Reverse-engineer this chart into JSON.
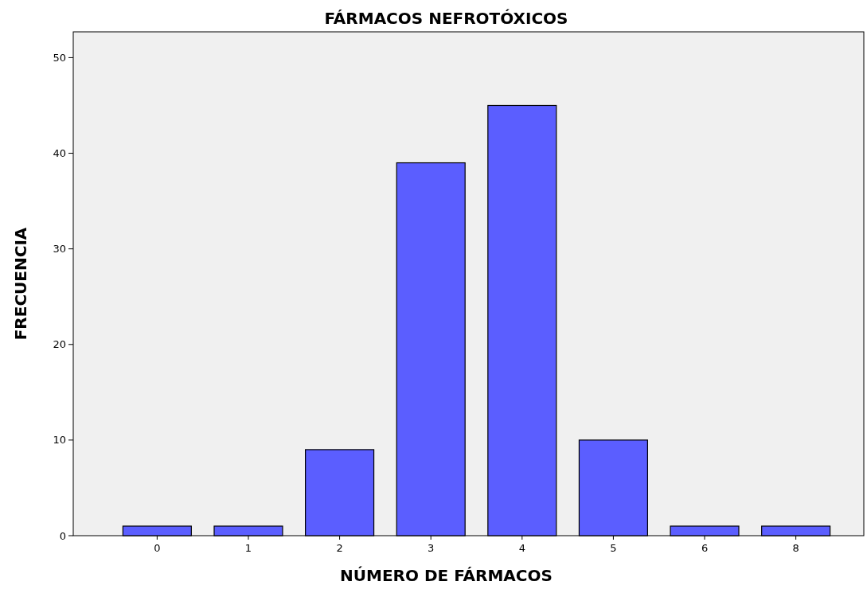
{
  "chart_data": {
    "type": "bar",
    "title": "FÁRMACOS NEFROTÓXICOS",
    "xlabel": "NÚMERO DE FÁRMACOS",
    "ylabel": "FRECUENCIA",
    "categories": [
      "0",
      "1",
      "2",
      "3",
      "4",
      "5",
      "6",
      "8"
    ],
    "values": [
      1,
      1,
      9,
      39,
      45,
      10,
      1,
      1
    ],
    "color": "#5b5eff",
    "ylim": [
      0,
      52.7
    ],
    "yticks": [
      0,
      10,
      20,
      30,
      40,
      50
    ],
    "grid": false
  }
}
